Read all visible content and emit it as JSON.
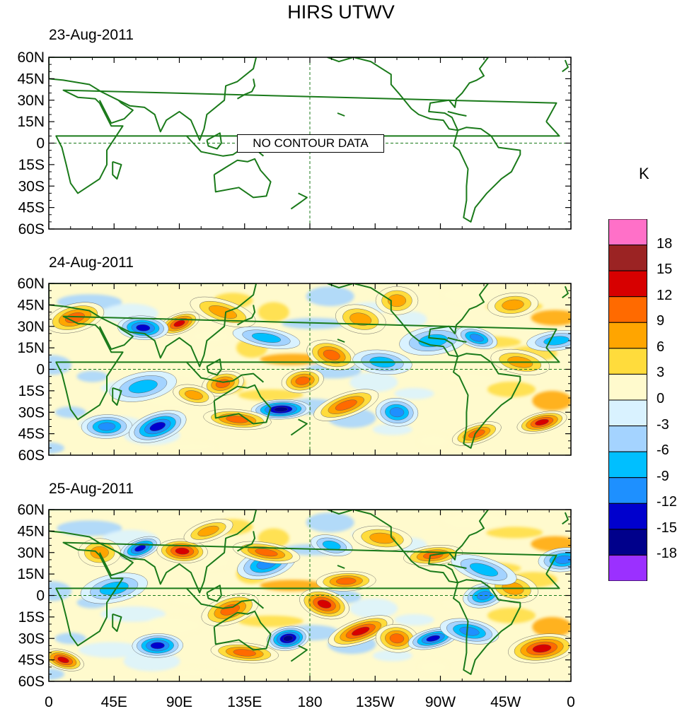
{
  "title": "HIRS UTWV",
  "unit": "K",
  "no_data_text": "NO CONTOUR DATA",
  "x_ticks": [
    "0",
    "45E",
    "90E",
    "135E",
    "180",
    "135W",
    "90W",
    "45W",
    "0"
  ],
  "y_ticks": [
    "60N",
    "45N",
    "30N",
    "15N",
    "0",
    "15S",
    "30S",
    "45S",
    "60S"
  ],
  "colors": {
    "land_outline": "#1a7a1a",
    "levels": [
      "#9b30ff",
      "#00008b",
      "#0000cd",
      "#1e90ff",
      "#00bfff",
      "#a4d3ff",
      "#d9f2ff",
      "#fffacd",
      "#ffdc3c",
      "#ffa500",
      "#ff6a00",
      "#d70000",
      "#9b2323",
      "#ff70c8"
    ]
  },
  "chart_data": {
    "type": "heatmap",
    "title": "HIRS UTWV",
    "colorbar_label": "K",
    "colorbar_ticks": [
      "18",
      "15",
      "12",
      "9",
      "6",
      "3",
      "0",
      "-3",
      "-6",
      "-9",
      "-12",
      "-15",
      "-18"
    ],
    "levels": [
      -18,
      -15,
      -12,
      -9,
      -6,
      -3,
      0,
      3,
      6,
      9,
      12,
      15,
      18
    ],
    "xlim": [
      0,
      360
    ],
    "ylim": [
      -60,
      60
    ],
    "panels": [
      {
        "date": "23-Aug-2011",
        "has_data": false,
        "anomalies": []
      },
      {
        "date": "24-Aug-2011",
        "has_data": true,
        "anomalies": [
          {
            "lon": 90,
            "lat": 32,
            "value": 14
          },
          {
            "lon": 65,
            "lat": 29,
            "value": -14
          },
          {
            "lon": 18,
            "lat": 36,
            "value": 10
          },
          {
            "lon": 150,
            "lat": 22,
            "value": -8
          },
          {
            "lon": 175,
            "lat": -8,
            "value": 11
          },
          {
            "lon": 195,
            "lat": 10,
            "value": 12
          },
          {
            "lon": 160,
            "lat": -28,
            "value": -17
          },
          {
            "lon": 205,
            "lat": -25,
            "value": 12
          },
          {
            "lon": 240,
            "lat": -30,
            "value": -10
          },
          {
            "lon": 340,
            "lat": -37,
            "value": 14
          },
          {
            "lon": 325,
            "lat": 5,
            "value": 9
          },
          {
            "lon": 265,
            "lat": 20,
            "value": -9
          },
          {
            "lon": 295,
            "lat": 22,
            "value": -11
          },
          {
            "lon": 40,
            "lat": -40,
            "value": -12
          },
          {
            "lon": 75,
            "lat": -40,
            "value": -13
          },
          {
            "lon": 130,
            "lat": -35,
            "value": 10
          },
          {
            "lon": 120,
            "lat": -10,
            "value": 12
          },
          {
            "lon": 215,
            "lat": 35,
            "value": 8
          },
          {
            "lon": 350,
            "lat": 20,
            "value": -8
          },
          {
            "lon": 120,
            "lat": 40,
            "value": 9
          },
          {
            "lon": 240,
            "lat": 48,
            "value": 9
          },
          {
            "lon": 295,
            "lat": -45,
            "value": 12
          },
          {
            "lon": 230,
            "lat": 5,
            "value": -9
          },
          {
            "lon": 65,
            "lat": -12,
            "value": -8
          },
          {
            "lon": 100,
            "lat": -18,
            "value": 7
          },
          {
            "lon": 320,
            "lat": 45,
            "value": 8
          }
        ]
      },
      {
        "date": "25-Aug-2011",
        "has_data": true,
        "anomalies": [
          {
            "lon": 63,
            "lat": 33,
            "value": -15
          },
          {
            "lon": 92,
            "lat": 31,
            "value": 14
          },
          {
            "lon": 150,
            "lat": 22,
            "value": -10
          },
          {
            "lon": 150,
            "lat": 30,
            "value": 11
          },
          {
            "lon": 165,
            "lat": -30,
            "value": -16
          },
          {
            "lon": 190,
            "lat": -6,
            "value": 13
          },
          {
            "lon": 205,
            "lat": 10,
            "value": 11
          },
          {
            "lon": 215,
            "lat": -25,
            "value": 13
          },
          {
            "lon": 240,
            "lat": -30,
            "value": 12
          },
          {
            "lon": 265,
            "lat": -30,
            "value": -14
          },
          {
            "lon": 290,
            "lat": -25,
            "value": -12
          },
          {
            "lon": 340,
            "lat": -37,
            "value": 15
          },
          {
            "lon": 10,
            "lat": -45,
            "value": 13
          },
          {
            "lon": 75,
            "lat": -35,
            "value": -14
          },
          {
            "lon": 125,
            "lat": -10,
            "value": 12
          },
          {
            "lon": 135,
            "lat": -40,
            "value": 12
          },
          {
            "lon": 300,
            "lat": 0,
            "value": -10
          },
          {
            "lon": 320,
            "lat": 5,
            "value": 8
          },
          {
            "lon": 265,
            "lat": 28,
            "value": 10
          },
          {
            "lon": 300,
            "lat": 18,
            "value": -9
          },
          {
            "lon": 35,
            "lat": 30,
            "value": 9
          },
          {
            "lon": 110,
            "lat": 45,
            "value": 8
          },
          {
            "lon": 230,
            "lat": 40,
            "value": 7
          },
          {
            "lon": 45,
            "lat": 5,
            "value": -8
          },
          {
            "lon": 195,
            "lat": 35,
            "value": -7
          },
          {
            "lon": 355,
            "lat": 25,
            "value": -10
          }
        ]
      }
    ]
  }
}
